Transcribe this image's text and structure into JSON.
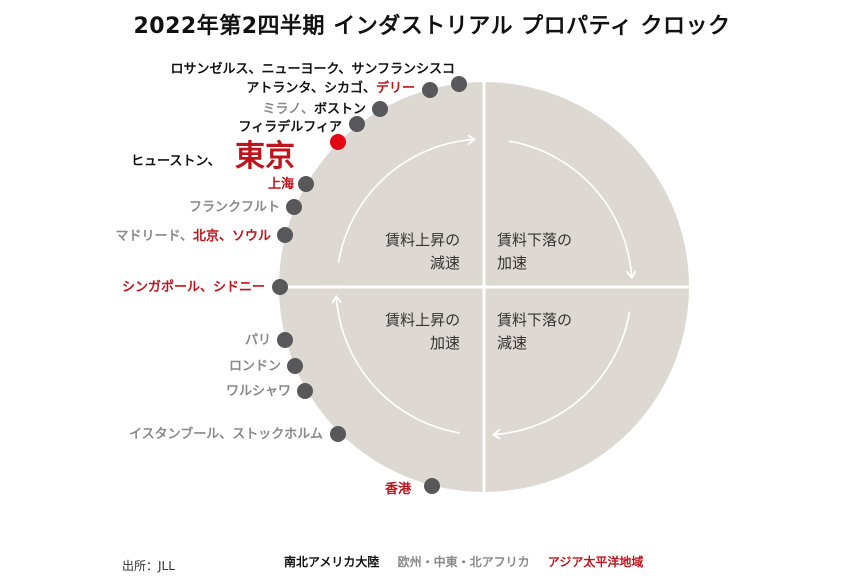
{
  "title": "2022年第2四半期 インダストリアル プロパティ クロック",
  "colors": {
    "clock_fill": "#ddd9d2",
    "dot": "#58585a",
    "highlight": "#e30613",
    "americas": "#111111",
    "emea": "#8a8a8a",
    "apac": "#c0141c"
  },
  "quadrants": [
    {
      "id": "q1",
      "line1": "賃料上昇の",
      "line2": "減速"
    },
    {
      "id": "q2",
      "line1": "賃料下落の",
      "line2": "加速"
    },
    {
      "id": "q3",
      "line1": "賃料上昇の",
      "line2": "加速"
    },
    {
      "id": "q4",
      "line1": "賃料下落の",
      "line2": "減速"
    }
  ],
  "markets": [
    {
      "label": "ロサンゼルス、ニューヨーク、サンフランシスコ",
      "region": "americas"
    },
    {
      "label": "アトランタ、シカゴ、デリー",
      "region": "mixed_americas_apac"
    },
    {
      "label": "ミラノ、ボストン",
      "region": "mixed_emea_americas"
    },
    {
      "label": "フィラデルフィア",
      "region": "americas"
    },
    {
      "label": "東京",
      "region": "highlight"
    },
    {
      "label": "ヒューストン、",
      "region": "americas"
    },
    {
      "label": "上海",
      "region": "apac"
    },
    {
      "label": "フランクフルト",
      "region": "emea"
    },
    {
      "label": "マドリード、北京、ソウル",
      "region": "mixed_emea_apac"
    },
    {
      "label": "シンガポール、シドニー",
      "region": "apac"
    },
    {
      "label": "パリ",
      "region": "emea"
    },
    {
      "label": "ロンドン",
      "region": "emea"
    },
    {
      "label": "ワルシャワ",
      "region": "emea"
    },
    {
      "label": "イスタンブール、ストックホルム",
      "region": "emea"
    },
    {
      "label": "香港",
      "region": "apac"
    }
  ],
  "label_parts": {
    "atlanta": "アトランタ、シカゴ、",
    "delhi": "デリー",
    "milan": "ミラノ、",
    "boston": "ボストン",
    "madrid": "マドリード、",
    "beijing_seoul": "北京、ソウル"
  },
  "source": "出所：JLL",
  "legend": [
    {
      "label": "南北アメリカ大陸",
      "region": "americas"
    },
    {
      "label": "欧州・中東・北アフリカ",
      "region": "emea"
    },
    {
      "label": "アジア太平洋地域",
      "region": "apac"
    }
  ]
}
